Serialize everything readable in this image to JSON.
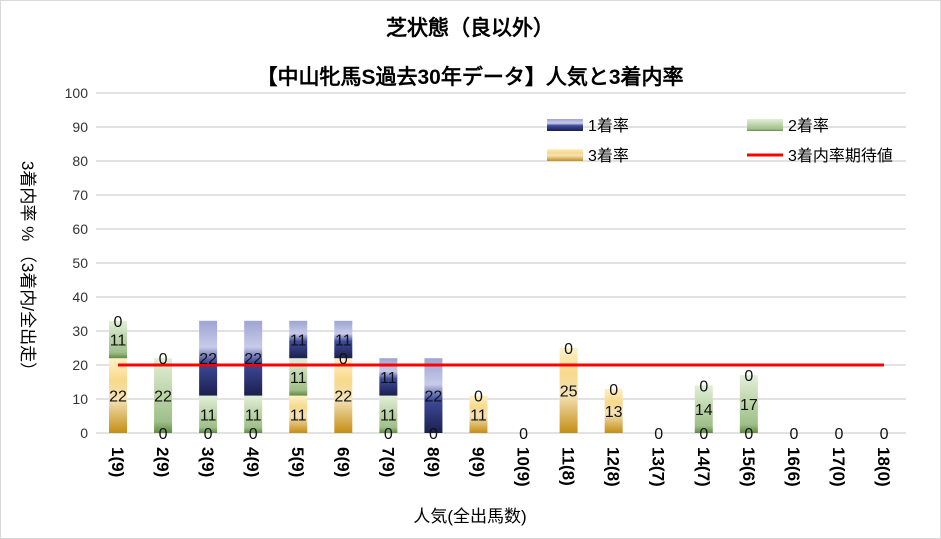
{
  "chart_data": {
    "type": "bar",
    "stacked": true,
    "title": "芝状態（良以外）",
    "subtitle": "【中山牝馬S過去30年データ】人気と3着内率",
    "xlabel": "人気(全出馬数)",
    "ylabel": "3着内率 %  （3着内/全出走）",
    "ylim": [
      0,
      100
    ],
    "yticks": [
      0,
      10,
      20,
      30,
      40,
      50,
      60,
      70,
      80,
      90,
      100
    ],
    "grid": true,
    "legend_position": "top-right",
    "categories": [
      "1(9)",
      "2(9)",
      "3(9)",
      "4(9)",
      "5(9)",
      "6(9)",
      "7(9)",
      "8(9)",
      "9(9)",
      "10(9)",
      "11(8)",
      "12(8)",
      "13(7)",
      "14(7)",
      "15(6)",
      "16(6)",
      "17(0)",
      "18(0)"
    ],
    "series": [
      {
        "name": "3着率",
        "color": "#c9961a",
        "values": [
          22,
          0,
          0,
          0,
          11,
          22,
          0,
          0,
          11,
          0,
          25,
          13,
          0,
          0,
          0,
          0,
          0,
          0
        ]
      },
      {
        "name": "2着率",
        "color": "#6a9a4c",
        "values": [
          11,
          22,
          11,
          11,
          11,
          0,
          11,
          0,
          0,
          0,
          0,
          0,
          0,
          14,
          17,
          0,
          0,
          0
        ]
      },
      {
        "name": "1着率",
        "color": "#3a4590",
        "values": [
          0,
          0,
          22,
          22,
          11,
          11,
          11,
          22,
          0,
          0,
          0,
          0,
          0,
          0,
          0,
          0,
          0,
          0
        ]
      }
    ],
    "line": {
      "name": "3着内率期待値",
      "color": "#ff0000",
      "value": 20
    }
  }
}
